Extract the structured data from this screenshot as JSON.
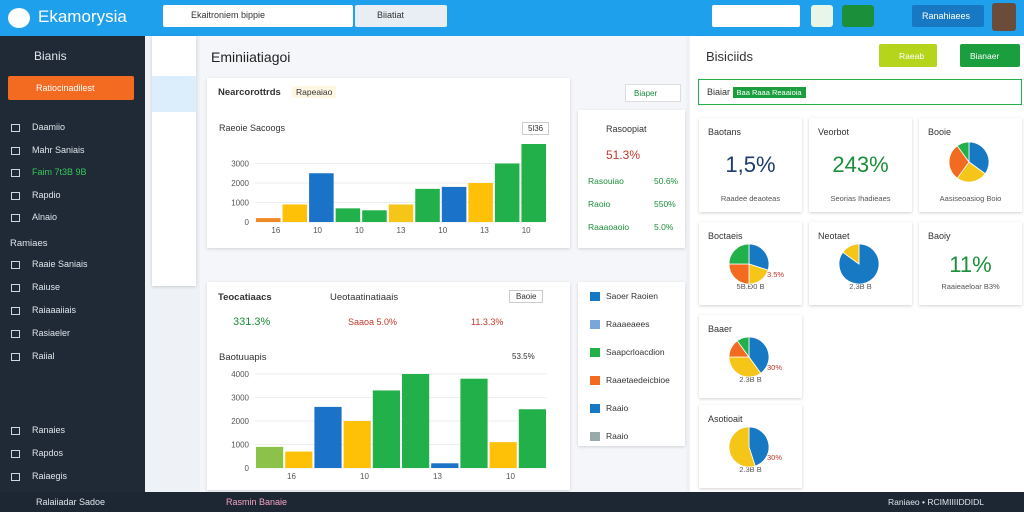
{
  "header": {
    "brand": "Ekamorysia",
    "search": "Ekaitroniem bippie",
    "search2": "Biiatiat",
    "button": "Ranahiaees"
  },
  "sidebar": {
    "title": "Bianis",
    "button": "Ratiocinadilest",
    "items": [
      "Daamiio",
      "Mahr Saniais",
      "Faim 7t3B 9B",
      "Rapdio",
      "Alnaio"
    ],
    "section": "Ramiaes",
    "items2": [
      "Raaie Saniais",
      "Raiuse",
      "Raiaaaiiais",
      "Rasiaeler",
      "Raiial"
    ],
    "bottom_items": [
      "Ranaies",
      "Rapdos",
      "Raiaegis"
    ],
    "footer": "Ralaiiadar Sadoe"
  },
  "footer": {
    "center": "Rasmin Banaie",
    "right": "Raniaeo • RCIMIIIIDDIDL"
  },
  "main": {
    "title": "Eminiiatiagoi",
    "panel1": {
      "title": "Nearcorottrds",
      "tag": "Rapeaiao",
      "filter": "Biaper",
      "chart_title": "Raeoie Sacoogs",
      "badge": "5l36",
      "chart": {
        "ylim": [
          0,
          4000
        ],
        "yticks": [
          0,
          1000,
          2000,
          3000
        ],
        "xlabels": [
          "16",
          "10",
          "10",
          "13",
          "10",
          "13",
          "10"
        ],
        "values": [
          200,
          900,
          2500,
          700,
          600,
          900,
          1700,
          1800,
          2000,
          3000,
          4000
        ],
        "colors": [
          "#f08a24",
          "#ffc107",
          "#1a73c8",
          "#22b04b",
          "#22b04b",
          "#f5c518",
          "#22b04b",
          "#1a73c8",
          "#ffc107",
          "#22b04b",
          "#22b04b"
        ]
      }
    },
    "side1": {
      "title": "Rasoopiat",
      "value": "51.3%",
      "rows": [
        [
          "Rasouiao",
          "50.6%"
        ],
        [
          "Raoio",
          "550%"
        ],
        [
          "Raaaoaoio",
          "5.0%"
        ]
      ]
    },
    "panel2": {
      "title": "Teocatiaacs",
      "subtitle": "Ueotaatinatiaais",
      "filter": "Baoie",
      "stats": [
        "331.3%",
        "Saaoa 5.0%",
        "11.3.3%"
      ],
      "chart_title": "Baotuuapis",
      "badge": "53.5%",
      "chart": {
        "ylim": [
          0,
          4000
        ],
        "yticks": [
          0,
          1000,
          2000,
          3000,
          4000
        ],
        "xlabels": [
          "16",
          "10",
          "13",
          "10"
        ],
        "values": [
          900,
          700,
          2600,
          2000,
          3300,
          4000,
          200,
          3800,
          1100,
          2500
        ],
        "colors": [
          "#8bc34a",
          "#ffc107",
          "#1a73c8",
          "#ffc107",
          "#22b04b",
          "#22b04b",
          "#1a73c8",
          "#22b04b",
          "#ffc107",
          "#22b04b"
        ]
      }
    },
    "side2": [
      "Saoer Raoien",
      "Raaaeaees",
      "Saapcrloacdion",
      "Raaetaedeicbioe",
      "Raaio",
      "Raaio"
    ]
  },
  "right": {
    "title": "Bisiciids",
    "button1": "Raeab",
    "button2": "Bianaer",
    "search": "Biaiar",
    "tag": "Baa Raaa Reaaioia",
    "tiles": [
      {
        "title": "Baotans",
        "value": "1,5%",
        "foot": "Raadee deaoteas"
      },
      {
        "title": "Veorbot",
        "value": "243%",
        "foot": "Seorias Ihadieaes"
      },
      {
        "title": "Booie",
        "foot": "Aasiseoasiog Boio",
        "pie": [
          35,
          25,
          30,
          10
        ]
      },
      {
        "title": "Boctaeis",
        "foot": "5B.Ð0 B",
        "note": "3.5%",
        "pie": [
          30,
          20,
          25,
          25
        ]
      },
      {
        "title": "Neotaet",
        "foot": "2.3B B",
        "pie": [
          85,
          15
        ]
      },
      {
        "title": "Baoiy",
        "value": "11%",
        "foot": "Raaieaeloar B3%"
      },
      {
        "title": "Baaer",
        "foot": "2.3B B",
        "note": "30%",
        "pie": [
          40,
          35,
          15,
          10
        ]
      },
      {
        "title": "Asotioait",
        "foot": "2.3B B",
        "note": "30%",
        "pie": [
          45,
          55
        ]
      }
    ]
  }
}
